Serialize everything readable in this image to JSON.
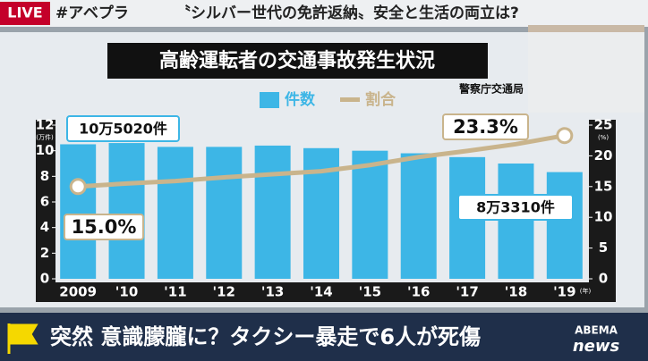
{
  "broadcast": {
    "live": "LIVE",
    "hashtag": "#アベプラ",
    "headline": "〝シルバー世代の免許返納〟安全と生活の両立は?",
    "ticker": "突然 意識朦朧に？タクシー暴走で6人が死傷",
    "logo_top": "ABEMA",
    "logo_bottom": "news"
  },
  "chart_data": {
    "type": "bar",
    "title": "高齢運転者の交通事故発生状況",
    "source": "警察庁交通局",
    "categories": [
      "2009",
      "'10",
      "'11",
      "'12",
      "'13",
      "'14",
      "'15",
      "'16",
      "'17",
      "'18",
      "'19"
    ],
    "x_unit": "(年)",
    "y_unit": "(万件)",
    "y2_unit": "(%)",
    "series": [
      {
        "name": "件数",
        "color": "#3db6e6",
        "values": [
          10.502,
          10.6,
          10.3,
          10.3,
          10.4,
          10.2,
          10.0,
          9.8,
          9.5,
          9.0,
          8.331
        ],
        "value_labels": [
          "10万5020件",
          null,
          null,
          null,
          null,
          null,
          null,
          null,
          null,
          null,
          "8万3310件"
        ]
      },
      {
        "name": "割合",
        "type": "line",
        "axis": "y2",
        "color": "#c9b48c",
        "values": [
          15.0,
          15.5,
          15.9,
          16.5,
          17.0,
          17.5,
          18.5,
          19.8,
          20.8,
          21.9,
          23.3
        ],
        "value_labels": [
          "15.0%",
          null,
          null,
          null,
          null,
          null,
          null,
          null,
          null,
          null,
          "23.3%"
        ]
      }
    ],
    "ylim": [
      0,
      12
    ],
    "yticks": [
      0,
      2,
      4,
      6,
      8,
      10,
      12
    ],
    "y2lim": [
      0,
      25
    ],
    "y2ticks": [
      0,
      5,
      10,
      15,
      20,
      25
    ]
  }
}
